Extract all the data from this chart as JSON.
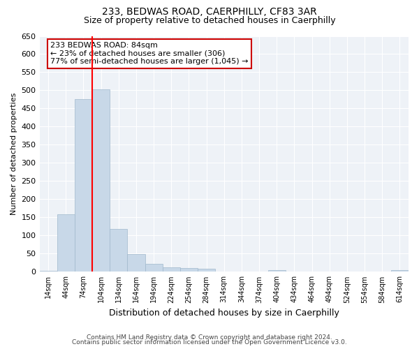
{
  "title1": "233, BEDWAS ROAD, CAERPHILLY, CF83 3AR",
  "title2": "Size of property relative to detached houses in Caerphilly",
  "xlabel": "Distribution of detached houses by size in Caerphilly",
  "ylabel": "Number of detached properties",
  "bar_labels": [
    "14sqm",
    "44sqm",
    "74sqm",
    "104sqm",
    "134sqm",
    "164sqm",
    "194sqm",
    "224sqm",
    "254sqm",
    "284sqm",
    "314sqm",
    "344sqm",
    "374sqm",
    "404sqm",
    "434sqm",
    "464sqm",
    "494sqm",
    "524sqm",
    "554sqm",
    "584sqm",
    "614sqm"
  ],
  "bar_values": [
    3,
    158,
    476,
    503,
    118,
    48,
    22,
    12,
    11,
    8,
    0,
    0,
    0,
    5,
    0,
    0,
    0,
    0,
    0,
    0,
    4
  ],
  "bar_color": "#c8d8e8",
  "bar_edge_color": "#a0b8cc",
  "ylim": [
    0,
    650
  ],
  "yticks": [
    0,
    50,
    100,
    150,
    200,
    250,
    300,
    350,
    400,
    450,
    500,
    550,
    600,
    650
  ],
  "annotation_text": "233 BEDWAS ROAD: 84sqm\n← 23% of detached houses are smaller (306)\n77% of semi-detached houses are larger (1,045) →",
  "annotation_box_color": "#ffffff",
  "annotation_box_edge": "#cc0000",
  "footer1": "Contains HM Land Registry data © Crown copyright and database right 2024.",
  "footer2": "Contains public sector information licensed under the Open Government Licence v3.0.",
  "background_color": "#eef2f7",
  "grid_color": "#ffffff"
}
